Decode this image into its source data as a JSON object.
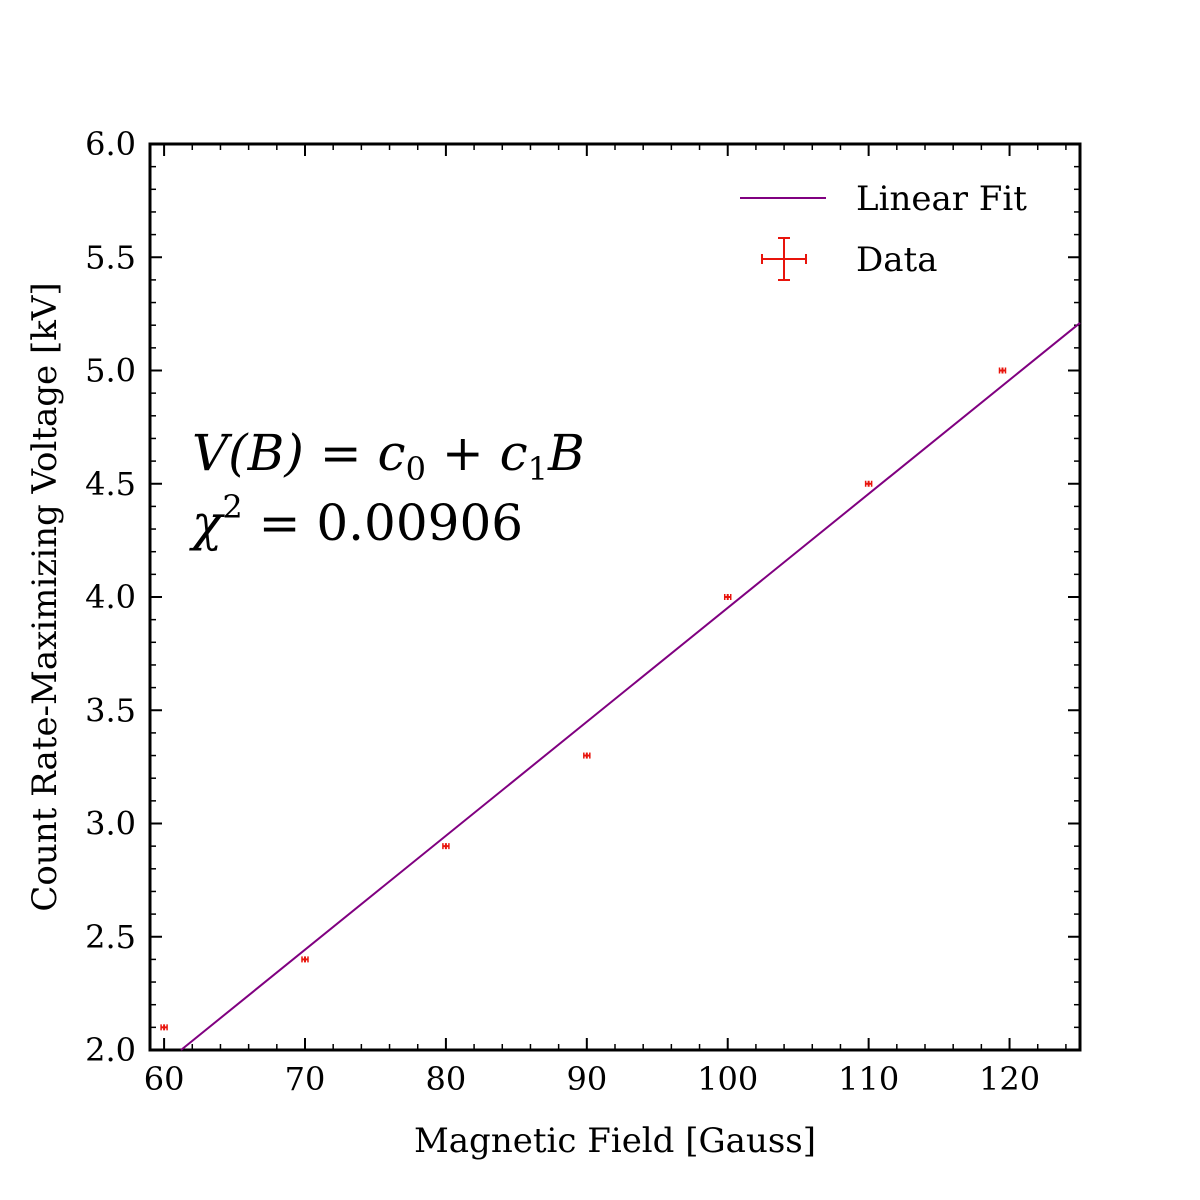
{
  "chart_data": {
    "type": "scatter",
    "xlabel": "Magnetic Field [Gauss]",
    "ylabel": "Count Rate-Maximizing Voltage [kV]",
    "xlim": [
      59,
      125
    ],
    "ylim": [
      2.0,
      6.0
    ],
    "x_ticks": [
      60,
      70,
      80,
      90,
      100,
      110,
      120
    ],
    "y_ticks": [
      2.0,
      2.5,
      3.0,
      3.5,
      4.0,
      4.5,
      5.0,
      5.5,
      6.0
    ],
    "x_tick_labels": [
      "60",
      "70",
      "80",
      "90",
      "100",
      "110",
      "120"
    ],
    "y_tick_labels": [
      "2.0",
      "2.5",
      "3.0",
      "3.5",
      "4.0",
      "4.5",
      "5.0",
      "5.5",
      "6.0"
    ],
    "grid": false,
    "legend_position": "top-right",
    "series": [
      {
        "name": "Data",
        "kind": "errorbar",
        "color": "#e8140c",
        "x": [
          60,
          70,
          80,
          90,
          100,
          110,
          119.5
        ],
        "y": [
          2.1,
          2.4,
          2.9,
          3.3,
          4.0,
          4.5,
          5.0
        ],
        "xerr": [
          0.2,
          0.2,
          0.2,
          0.2,
          0.2,
          0.2,
          0.2
        ],
        "yerr": [
          0.01,
          0.01,
          0.01,
          0.01,
          0.01,
          0.01,
          0.01
        ]
      },
      {
        "name": "Linear Fit",
        "kind": "line",
        "color": "#800080",
        "x": [
          61.2,
          125
        ],
        "y": [
          2.0,
          5.21
        ]
      }
    ],
    "annotations": [
      {
        "line1_main": "V(B) = c",
        "sub0": "0",
        "plus": " + c",
        "sub1": "1",
        "tailB": "B"
      },
      {
        "chi": "χ",
        "sup": "2",
        "rest": " = 0.00906"
      }
    ]
  }
}
